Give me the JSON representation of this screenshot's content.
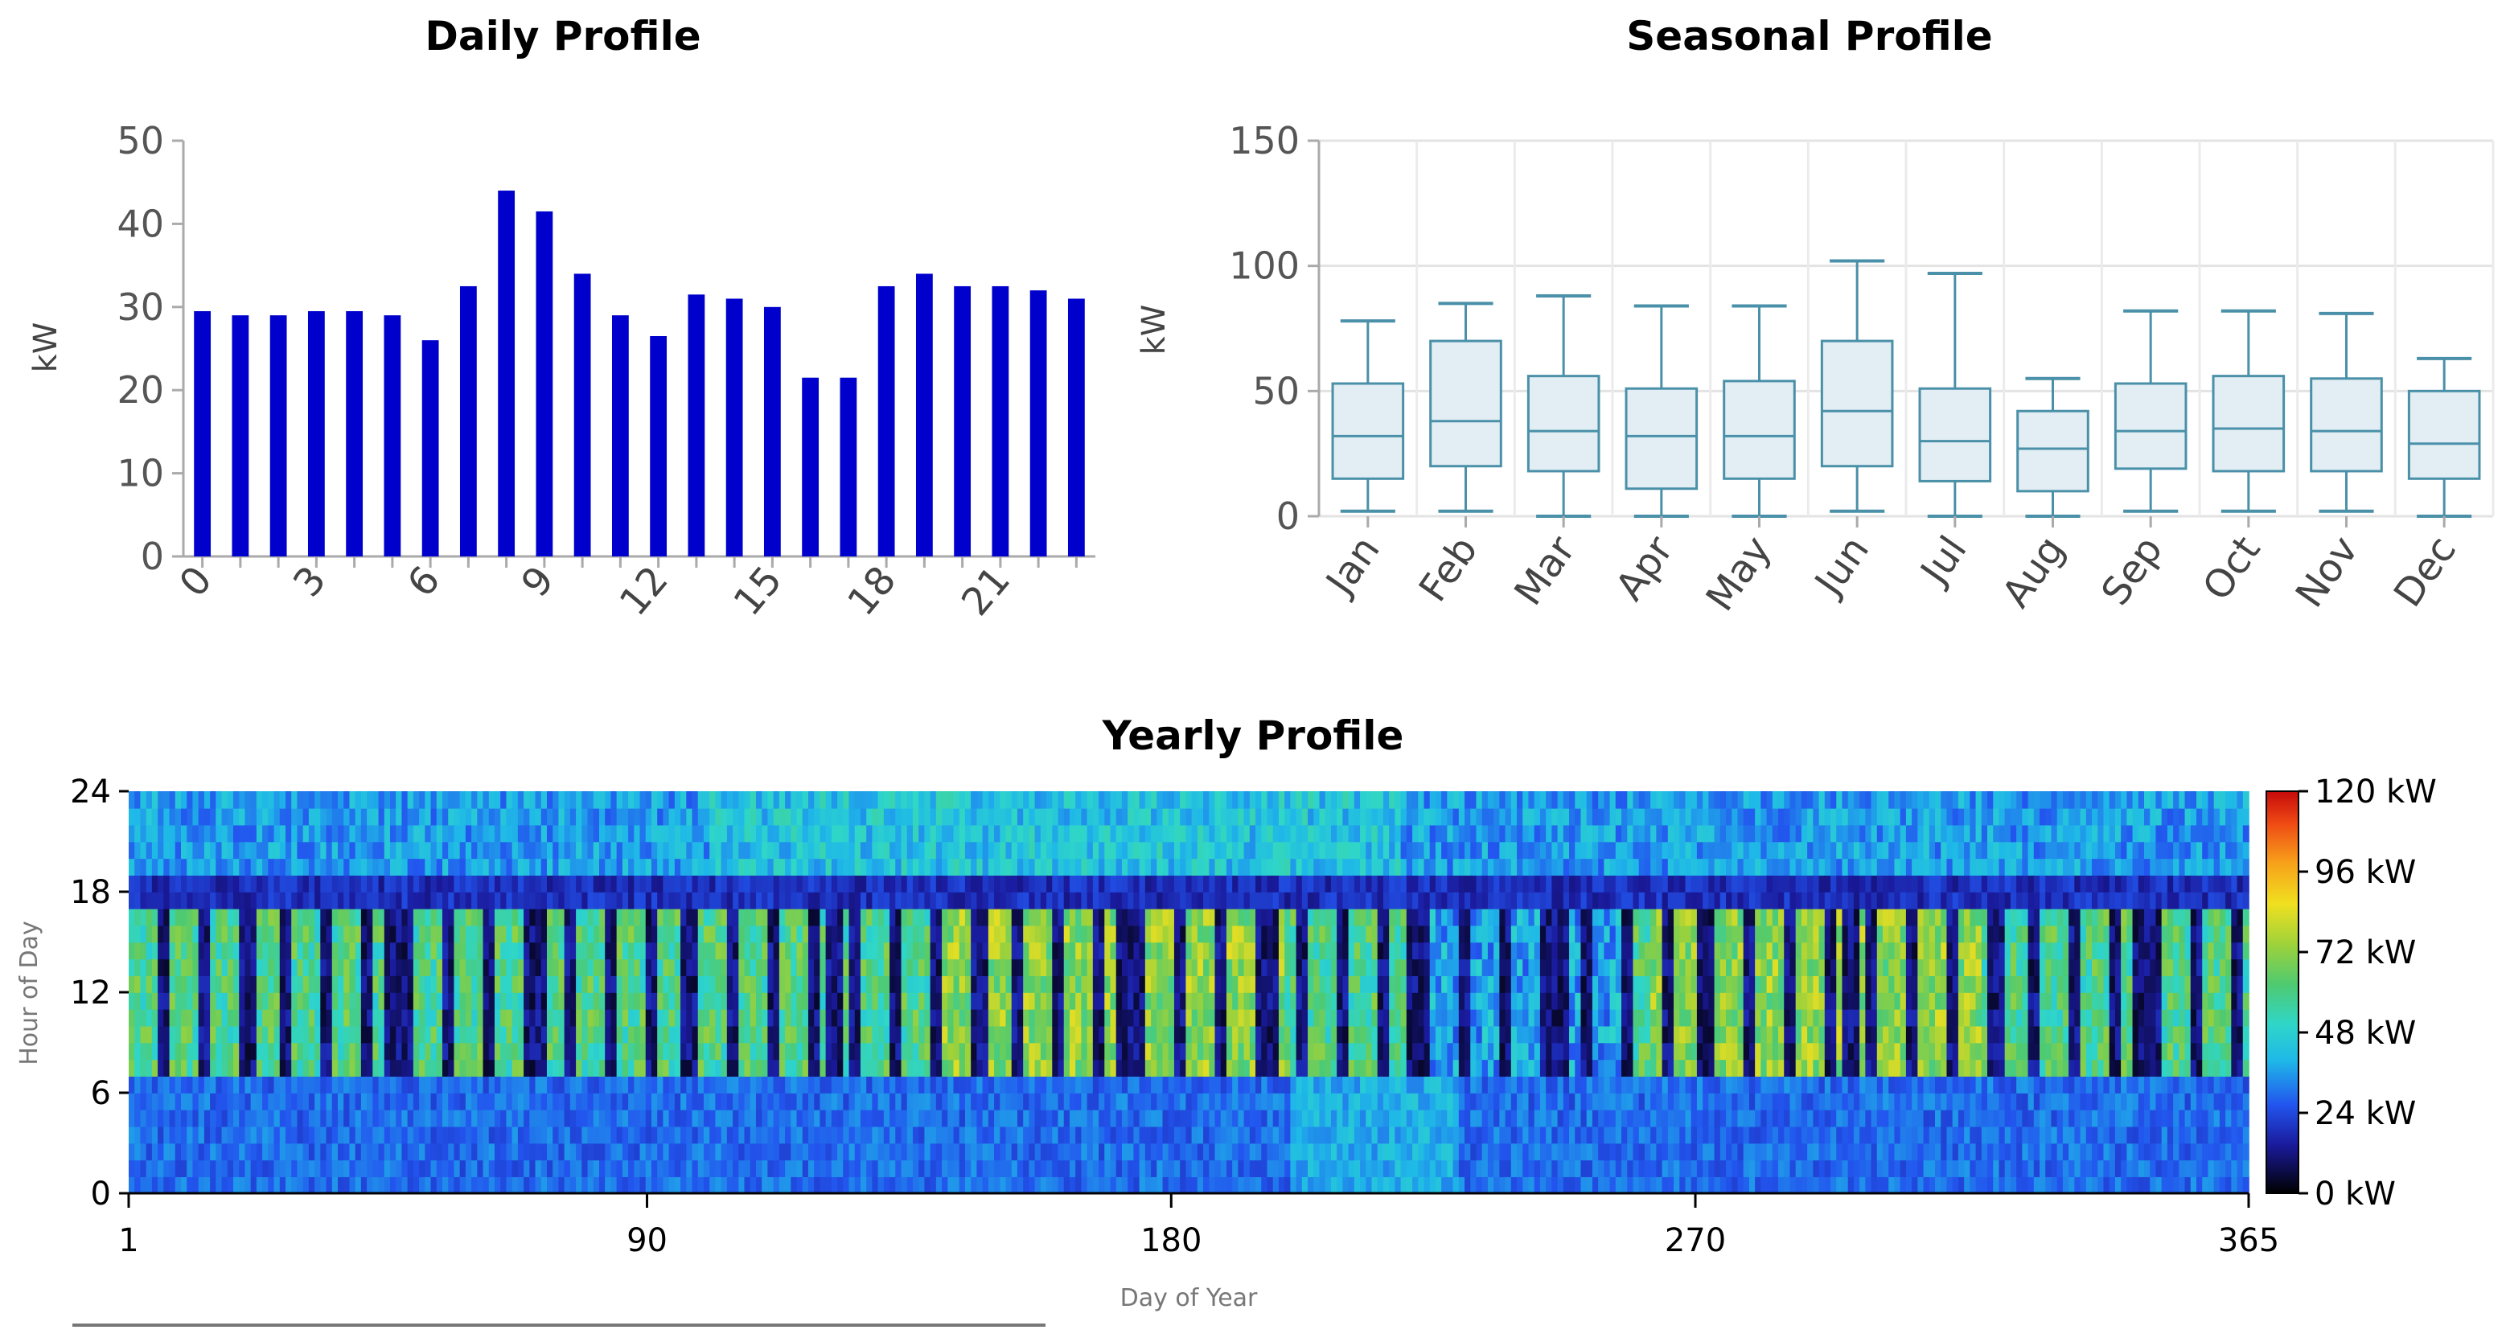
{
  "chart_data": [
    {
      "type": "bar",
      "title": "Daily Profile",
      "ylabel": "kW",
      "xlabel": "",
      "ylim": [
        0,
        50
      ],
      "yticks": [
        0,
        10,
        20,
        30,
        40,
        50
      ],
      "xtick_labels": [
        "0",
        "3",
        "6",
        "9",
        "12",
        "15",
        "18",
        "21"
      ],
      "categories": [
        0,
        1,
        2,
        3,
        4,
        5,
        6,
        7,
        8,
        9,
        10,
        11,
        12,
        13,
        14,
        15,
        16,
        17,
        18,
        19,
        20,
        21,
        22,
        23
      ],
      "values": [
        29.5,
        29,
        29,
        29.5,
        29.5,
        29,
        26,
        32.5,
        44,
        41.5,
        34,
        29,
        26.5,
        31.5,
        31,
        30,
        21.5,
        21.5,
        32.5,
        34,
        32.5,
        32.5,
        32,
        31
      ],
      "bar_color": "#0000CC"
    },
    {
      "type": "box",
      "title": "Seasonal Profile",
      "ylabel": "kW",
      "ylim": [
        0,
        150
      ],
      "yticks": [
        0,
        50,
        100,
        150
      ],
      "grid": true,
      "categories": [
        "Jan",
        "Feb",
        "Mar",
        "Apr",
        "May",
        "Jun",
        "Jul",
        "Aug",
        "Sep",
        "Oct",
        "Nov",
        "Dec"
      ],
      "boxes": [
        {
          "min": 2,
          "q1": 15,
          "median": 32,
          "q3": 53,
          "max": 78
        },
        {
          "min": 2,
          "q1": 20,
          "median": 38,
          "q3": 70,
          "max": 85
        },
        {
          "min": 0,
          "q1": 18,
          "median": 34,
          "q3": 56,
          "max": 88
        },
        {
          "min": 0,
          "q1": 11,
          "median": 32,
          "q3": 51,
          "max": 84
        },
        {
          "min": 0,
          "q1": 15,
          "median": 32,
          "q3": 54,
          "max": 84
        },
        {
          "min": 2,
          "q1": 20,
          "median": 42,
          "q3": 70,
          "max": 102
        },
        {
          "min": 0,
          "q1": 14,
          "median": 30,
          "q3": 51,
          "max": 97
        },
        {
          "min": 0,
          "q1": 10,
          "median": 27,
          "q3": 42,
          "max": 55
        },
        {
          "min": 2,
          "q1": 19,
          "median": 34,
          "q3": 53,
          "max": 82
        },
        {
          "min": 2,
          "q1": 18,
          "median": 35,
          "q3": 56,
          "max": 82
        },
        {
          "min": 2,
          "q1": 18,
          "median": 34,
          "q3": 55,
          "max": 81
        },
        {
          "min": 0,
          "q1": 15,
          "median": 29,
          "q3": 50,
          "max": 63
        }
      ],
      "box_color": "#4a90a8",
      "box_fill": "#e2eef4"
    },
    {
      "type": "heatmap",
      "title": "Yearly Profile",
      "xlabel": "Day of Year",
      "ylabel": "Hour of Day",
      "xlim": [
        1,
        365
      ],
      "ylim": [
        0,
        24
      ],
      "xtick_labels": [
        "1",
        "90",
        "180",
        "270",
        "365"
      ],
      "ytick_labels": [
        "0",
        "6",
        "12",
        "18",
        "24"
      ],
      "colorbar_ticks": [
        "0 kW",
        "24 kW",
        "48 kW",
        "72 kW",
        "96 kW",
        "120 kW"
      ],
      "colorbar_range": [
        0,
        120
      ]
    }
  ]
}
